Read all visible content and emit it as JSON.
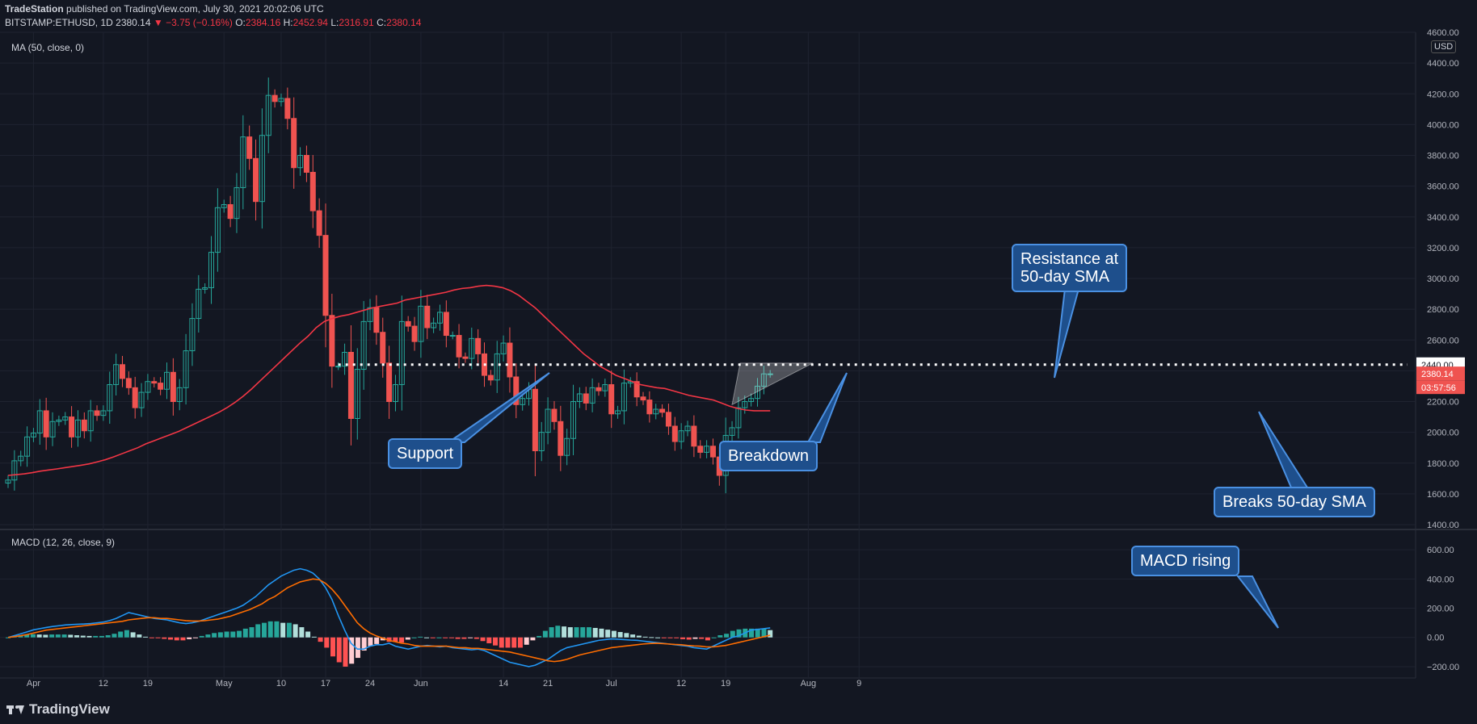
{
  "header": {
    "publisher": "TradeStation",
    "published_text": "published on TradingView.com, July 30, 2021 20:02:06 UTC",
    "symbol": "BITSTAMP:ETHUSD, 1D",
    "last": "2380.14",
    "change": "−3.75 (−0.16%)",
    "o_label": "O:",
    "o": "2384.16",
    "h_label": "H:",
    "h": "2452.94",
    "l_label": "L:",
    "l": "2316.91",
    "c_label": "C:",
    "c": "2380.14"
  },
  "indicators": {
    "ma_label": "MA (50, close, 0)",
    "macd_label": "MACD (12, 26, close, 9)"
  },
  "currency": "USD",
  "price_tags": {
    "level": "2440.00",
    "last": "2380.14",
    "countdown": "03:57:56"
  },
  "annotations": {
    "support": "Support",
    "breakdown": "Breakdown",
    "resistance": "Resistance at\n50-day SMA",
    "breaks": "Breaks 50-day SMA",
    "macd": "MACD rising"
  },
  "brand": "TradingView",
  "colors": {
    "background": "#131722",
    "up": "#26a69a",
    "down": "#ef5350",
    "ma": "#f23645",
    "macd": "#2196f3",
    "signal": "#ff6d00",
    "callout": "#1e4f8c",
    "level": "#ffffff"
  },
  "chart_data": [
    {
      "type": "candlestick",
      "title": "BITSTAMP:ETHUSD, 1D",
      "x_start": "2021-03-28",
      "ylim": [
        1400,
        4600
      ],
      "yticks": [
        1400,
        1600,
        1800,
        2000,
        2200,
        2400,
        2600,
        2800,
        3000,
        3200,
        3400,
        3600,
        3800,
        4000,
        4200,
        4400,
        4600
      ],
      "ytick_labels": [
        "1400.00",
        "1600.00",
        "1800.00",
        "2000.00",
        "2200.00",
        "2400.00",
        "2600.00",
        "2800.00",
        "3000.00",
        "3200.00",
        "3400.00",
        "3600.00",
        "3800.00",
        "4000.00",
        "4200.00",
        "4400.00",
        "4600.00"
      ],
      "xtick_labels": [
        "Apr",
        "12",
        "19",
        "May",
        "10",
        "17",
        "24",
        "Jun",
        "14",
        "21",
        "Jul",
        "12",
        "19",
        "Aug",
        "9"
      ],
      "xtick_dates": [
        "2021-04-01",
        "2021-04-12",
        "2021-04-19",
        "2021-05-01",
        "2021-05-10",
        "2021-05-17",
        "2021-05-24",
        "2021-06-01",
        "2021-06-14",
        "2021-06-21",
        "2021-07-01",
        "2021-07-12",
        "2021-07-19",
        "2021-08-01",
        "2021-08-09"
      ],
      "close": [
        1690,
        1815,
        1845,
        1970,
        1995,
        2140,
        1970,
        2070,
        2080,
        2100,
        1970,
        2080,
        2010,
        2140,
        2110,
        2140,
        2310,
        2440,
        2350,
        2290,
        2160,
        2260,
        2330,
        2320,
        2280,
        2390,
        2200,
        2290,
        2530,
        2740,
        2930,
        2940,
        3170,
        3460,
        3480,
        3390,
        3590,
        3920,
        3780,
        3500,
        3930,
        4190,
        4150,
        4170,
        4040,
        3720,
        3800,
        3690,
        3440,
        3280,
        2760,
        2430,
        2430,
        2520,
        2090,
        2410,
        2720,
        2810,
        2650,
        2450,
        2200,
        2310,
        2720,
        2690,
        2590,
        2820,
        2680,
        2710,
        2780,
        2630,
        2630,
        2490,
        2480,
        2610,
        2510,
        2370,
        2340,
        2510,
        2580,
        2360,
        2180,
        2220,
        2280,
        1880,
        2000,
        2150,
        2070,
        1850,
        1960,
        2200,
        2250,
        2190,
        2290,
        2270,
        2310,
        2120,
        2140,
        2320,
        2330,
        2230,
        2210,
        2120,
        2150,
        2130,
        2040,
        1940,
        2010,
        2040,
        1910,
        1870,
        1910,
        1840,
        1720,
        1980,
        2030,
        2160,
        2200,
        2220,
        2300,
        2380,
        2380
      ]
    },
    {
      "type": "line",
      "title": "MA (50, close, 0)",
      "x_start": "2021-03-28",
      "ylim": [
        1400,
        4600
      ],
      "series": [
        {
          "name": "MA (50, close, 0)",
          "values": [
            1720,
            1725,
            1730,
            1738,
            1748,
            1755,
            1762,
            1770,
            1778,
            1786,
            1795,
            1808,
            1822,
            1840,
            1860,
            1880,
            1900,
            1925,
            1945,
            1965,
            1985,
            2005,
            2030,
            2055,
            2080,
            2105,
            2130,
            2160,
            2195,
            2235,
            2280,
            2330,
            2380,
            2430,
            2480,
            2530,
            2580,
            2625,
            2680,
            2720,
            2740,
            2755,
            2765,
            2780,
            2795,
            2810,
            2820,
            2830,
            2840,
            2860,
            2870,
            2880,
            2890,
            2900,
            2910,
            2925,
            2935,
            2940,
            2950,
            2955,
            2950,
            2940,
            2920,
            2890,
            2850,
            2810,
            2760,
            2710,
            2660,
            2610,
            2560,
            2510,
            2470,
            2430,
            2400,
            2370,
            2350,
            2330,
            2310,
            2300,
            2290,
            2285,
            2270,
            2255,
            2240,
            2230,
            2220,
            2210,
            2190,
            2170,
            2155,
            2145,
            2140,
            2140,
            2140
          ]
        }
      ]
    },
    {
      "type": "bar+line",
      "title": "MACD (12, 26, close, 9)",
      "x_start": "2021-03-28",
      "ylim": [
        -250,
        700
      ],
      "yticks": [
        -200,
        0,
        200,
        400,
        600
      ],
      "ytick_labels": [
        "−200.00",
        "0.00",
        "200.00",
        "400.00",
        "600.00"
      ],
      "series": [
        {
          "name": "MACD",
          "values": [
            0,
            12,
            25,
            38,
            52,
            60,
            68,
            75,
            80,
            85,
            88,
            90,
            92,
            95,
            100,
            105,
            115,
            130,
            150,
            170,
            160,
            150,
            140,
            130,
            125,
            120,
            110,
            100,
            95,
            100,
            110,
            125,
            140,
            155,
            170,
            185,
            200,
            220,
            250,
            280,
            320,
            360,
            390,
            420,
            440,
            460,
            470,
            460,
            440,
            400,
            340,
            260,
            150,
            50,
            -40,
            -80,
            -80,
            -60,
            -50,
            -50,
            -40,
            -60,
            -70,
            -80,
            -70,
            -60,
            -55,
            -60,
            -65,
            -60,
            -70,
            -75,
            -80,
            -85,
            -80,
            -90,
            -110,
            -130,
            -150,
            -170,
            -180,
            -190,
            -200,
            -190,
            -170,
            -150,
            -120,
            -90,
            -70,
            -60,
            -50,
            -40,
            -30,
            -20,
            -15,
            -10,
            -12,
            -15,
            -18,
            -20,
            -25,
            -30,
            -35,
            -40,
            -45,
            -50,
            -55,
            -60,
            -70,
            -75,
            -80,
            -60,
            -40,
            -20,
            0,
            10,
            30,
            50,
            55,
            60,
            65
          ]
        },
        {
          "name": "Signal",
          "values": [
            0,
            5,
            12,
            20,
            30,
            40,
            50,
            55,
            60,
            65,
            70,
            75,
            80,
            85,
            90,
            95,
            100,
            105,
            110,
            120,
            125,
            130,
            135,
            135,
            130,
            130,
            125,
            120,
            115,
            112,
            112,
            115,
            120,
            125,
            135,
            145,
            160,
            175,
            190,
            210,
            230,
            260,
            280,
            310,
            340,
            360,
            380,
            390,
            400,
            395,
            370,
            330,
            280,
            220,
            160,
            100,
            60,
            30,
            10,
            -5,
            -20,
            -30,
            -40,
            -45,
            -55,
            -60,
            -60,
            -60,
            -60,
            -60,
            -65,
            -70,
            -70,
            -75,
            -75,
            -80,
            -85,
            -90,
            -95,
            -100,
            -110,
            -120,
            -130,
            -140,
            -150,
            -160,
            -165,
            -160,
            -150,
            -135,
            -120,
            -110,
            -100,
            -90,
            -80,
            -70,
            -65,
            -60,
            -55,
            -50,
            -45,
            -42,
            -40,
            -42,
            -45,
            -48,
            -50,
            -55,
            -58,
            -60,
            -65,
            -65,
            -60,
            -55,
            -45,
            -35,
            -25,
            -15,
            -5,
            5,
            15
          ]
        }
      ],
      "histogram": [
        0,
        7,
        13,
        18,
        22,
        20,
        18,
        20,
        20,
        20,
        18,
        15,
        12,
        10,
        10,
        10,
        15,
        25,
        40,
        50,
        35,
        20,
        5,
        -5,
        -5,
        -10,
        -15,
        -20,
        -20,
        -12,
        -2,
        10,
        20,
        30,
        35,
        40,
        40,
        45,
        60,
        70,
        90,
        100,
        110,
        110,
        100,
        100,
        90,
        70,
        40,
        5,
        -30,
        -70,
        -130,
        -170,
        -200,
        -180,
        -140,
        -90,
        -60,
        -45,
        -20,
        -30,
        -30,
        -35,
        -15,
        0,
        5,
        0,
        -5,
        0,
        -5,
        -5,
        -10,
        -10,
        -5,
        -10,
        -25,
        -40,
        -55,
        -70,
        -70,
        -70,
        -70,
        -50,
        -20,
        10,
        45,
        70,
        80,
        75,
        70,
        70,
        70,
        70,
        65,
        60,
        53,
        45,
        37,
        30,
        20,
        12,
        5,
        2,
        0,
        -2,
        -5,
        -5,
        -12,
        -15,
        -10,
        -10,
        -20,
        0,
        15,
        25,
        45,
        55,
        60,
        60,
        60,
        60,
        50
      ]
    }
  ]
}
